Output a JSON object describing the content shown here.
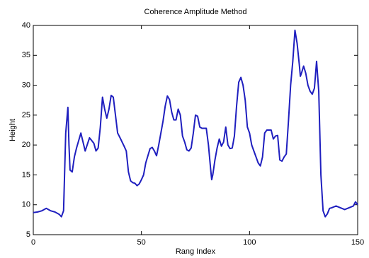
{
  "chart_data": {
    "type": "line",
    "title": "Coherence Amplitude Method",
    "x_label": "Rang Index",
    "y_label": "Height",
    "x": [
      0,
      2,
      4,
      6,
      8,
      10,
      12,
      13,
      14,
      15,
      16,
      16.5,
      17,
      18,
      19,
      20,
      22,
      24,
      26,
      28,
      29,
      30,
      31,
      32,
      33,
      34,
      35,
      36,
      37,
      38,
      39,
      40,
      42,
      43,
      44,
      45,
      46,
      47,
      48,
      49,
      50,
      51,
      52,
      54,
      55,
      56,
      57,
      58,
      60,
      61,
      62,
      63,
      64,
      65,
      66,
      67,
      68,
      69,
      70,
      71,
      72,
      73,
      74,
      75,
      76,
      77,
      78,
      79,
      80,
      81,
      82,
      82.5,
      83,
      84,
      85,
      86,
      87,
      88,
      89,
      90,
      91,
      92,
      93,
      94,
      95,
      96,
      97,
      98,
      99,
      100,
      101,
      102,
      103,
      104,
      105,
      106,
      107,
      108,
      109,
      110,
      111,
      112,
      113,
      114,
      115,
      116,
      117,
      118,
      119,
      120,
      121,
      122,
      123,
      123.5,
      124,
      125,
      126,
      127,
      128,
      129,
      130,
      131,
      132,
      133,
      134,
      135,
      136,
      137,
      138,
      140,
      142,
      144,
      146,
      148,
      149,
      150
    ],
    "series": [
      {
        "name": "Height",
        "color": "#1f1fbf",
        "values": [
          8.7,
          8.8,
          9.0,
          9.4,
          9.0,
          8.8,
          8.4,
          8.0,
          9.0,
          22,
          26.3,
          20,
          15.8,
          15.5,
          18,
          19.5,
          22,
          19,
          21.2,
          20.3,
          19,
          19.5,
          23,
          28,
          26,
          24.5,
          26,
          28.3,
          28,
          25,
          22,
          21.3,
          19.8,
          19,
          15.5,
          14,
          13.7,
          13.6,
          13.2,
          13.5,
          14.2,
          15,
          17,
          19.4,
          19.6,
          19,
          18.2,
          20,
          24,
          26.5,
          28.2,
          27.6,
          25.5,
          24.2,
          24.2,
          26,
          25,
          21.5,
          20.5,
          19.2,
          19,
          19.5,
          22,
          25,
          24.8,
          23,
          22.8,
          22.8,
          22.8,
          20,
          16,
          14.2,
          15,
          17.5,
          19.5,
          21,
          19.8,
          20.5,
          23,
          20,
          19.4,
          19.5,
          21.5,
          26.5,
          30.5,
          31.3,
          30,
          27.5,
          23,
          22,
          20,
          19,
          18,
          17,
          16.5,
          18,
          22,
          22.5,
          22.5,
          22.5,
          21,
          21.5,
          21.6,
          17.5,
          17.3,
          18,
          18.5,
          24,
          30,
          34,
          39.2,
          37,
          33.5,
          31.5,
          32,
          33.2,
          32,
          30,
          29,
          28.5,
          29.5,
          34,
          29,
          15,
          9,
          8,
          8.5,
          9.4,
          9.5,
          9.8,
          9.5,
          9.2,
          9.5,
          9.8,
          10.5,
          10
        ]
      }
    ],
    "xlim": [
      0,
      150
    ],
    "xticks": [
      0,
      50,
      100,
      150
    ],
    "ylim": [
      5,
      40
    ],
    "yticks": [
      5,
      10,
      15,
      20,
      25,
      30,
      35,
      40
    ],
    "grid": false
  }
}
